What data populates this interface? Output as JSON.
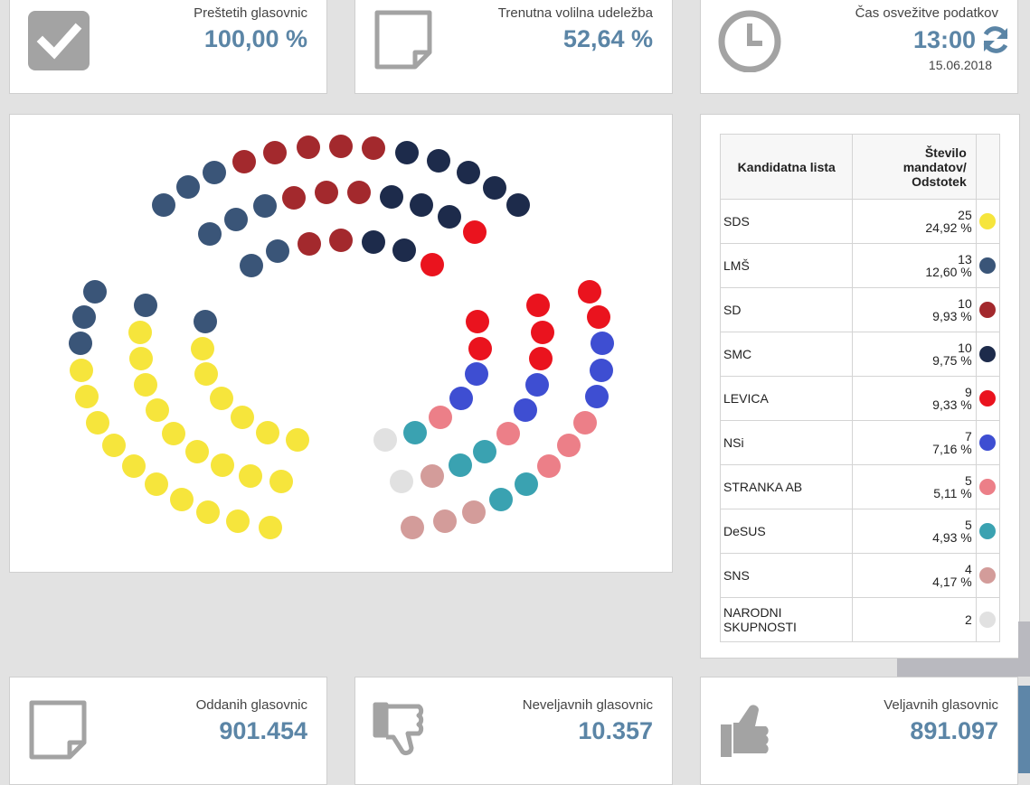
{
  "stats_top": {
    "counted": {
      "label": "Preštetih glasovnic",
      "value": "100,00 %"
    },
    "turnout": {
      "label": "Trenutna volilna udeležba",
      "value": "52,64 %"
    },
    "refresh": {
      "label": "Čas osvežitve podatkov",
      "time": "13:00",
      "date": "15.06.2018"
    }
  },
  "stats_bottom": {
    "cast": {
      "label": "Oddanih glasovnic",
      "value": "901.454"
    },
    "invalid": {
      "label": "Neveljavnih glasovnic",
      "value": "10.357"
    },
    "valid": {
      "label": "Veljavnih glasovnic",
      "value": "891.097"
    }
  },
  "legend": {
    "header_list": "Kandidatna lista",
    "header_seats_line1": "Število",
    "header_seats_line2": "mandatov/",
    "header_seats_line3": "Odstotek",
    "parties": [
      {
        "name": "SDS",
        "seats": "25",
        "percent": "24,92 %",
        "color": "#f6e53c"
      },
      {
        "name": "LMŠ",
        "seats": "13",
        "percent": "12,60 %",
        "color": "#3a5578"
      },
      {
        "name": "SD",
        "seats": "10",
        "percent": "9,93 %",
        "color": "#a3292d"
      },
      {
        "name": "SMC",
        "seats": "10",
        "percent": "9,75 %",
        "color": "#1d2b4b"
      },
      {
        "name": "LEVICA",
        "seats": "9",
        "percent": "9,33 %",
        "color": "#ea131e"
      },
      {
        "name": "NSi",
        "seats": "7",
        "percent": "7,16 %",
        "color": "#3e4ed2"
      },
      {
        "name": "STRANKA AB",
        "seats": "5",
        "percent": "5,11 %",
        "color": "#ec7f88"
      },
      {
        "name": "DeSUS",
        "seats": "5",
        "percent": "4,93 %",
        "color": "#3aa2b1"
      },
      {
        "name": "SNS",
        "seats": "4",
        "percent": "4,17 %",
        "color": "#d39c9a"
      },
      {
        "name": "NARODNI SKUPNOSTI",
        "seats": "2",
        "percent": "",
        "color": "#e1e1e1"
      }
    ]
  },
  "icons": {
    "counted": "checkmark-icon",
    "turnout": "document-icon",
    "refresh": "clock-icon",
    "refresh_button": "refresh-icon",
    "cast": "document-icon",
    "invalid": "thumbs-down-icon",
    "valid": "thumbs-up-icon"
  }
}
